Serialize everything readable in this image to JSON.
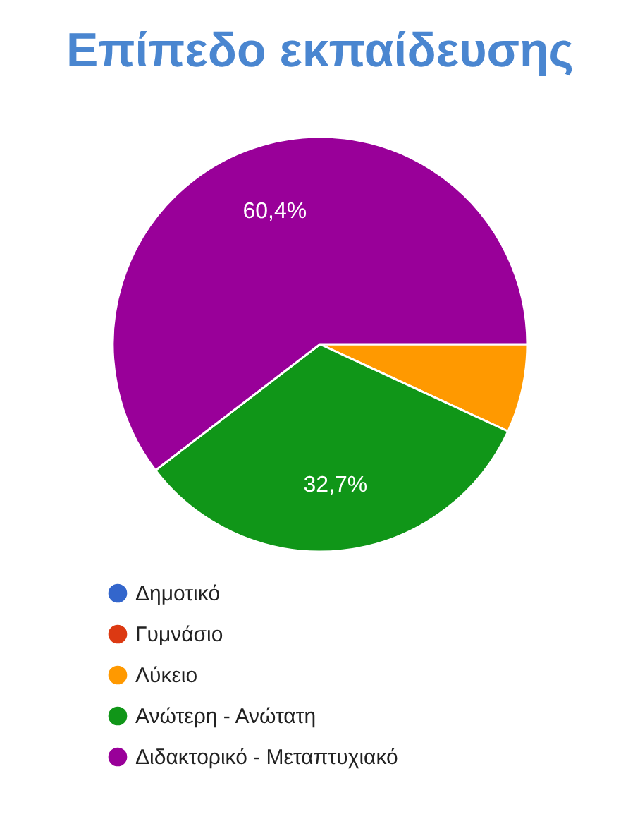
{
  "chart_data": {
    "type": "pie",
    "title": "Επίπεδο εκπαίδευσης",
    "categories": [
      "Δημοτικό",
      "Γυμνάσιο",
      "Λύκειο",
      "Ανώτερη - Ανώτατη",
      "Διδακτορικό - Μεταπτυχιακό"
    ],
    "values": [
      0,
      0,
      6.9,
      32.7,
      60.4
    ],
    "colors": [
      "#3366cc",
      "#dc3912",
      "#ff9900",
      "#109618",
      "#990099"
    ],
    "value_labels": [
      null,
      null,
      null,
      "32,7%",
      "60,4%"
    ],
    "legend": "bottom left"
  }
}
